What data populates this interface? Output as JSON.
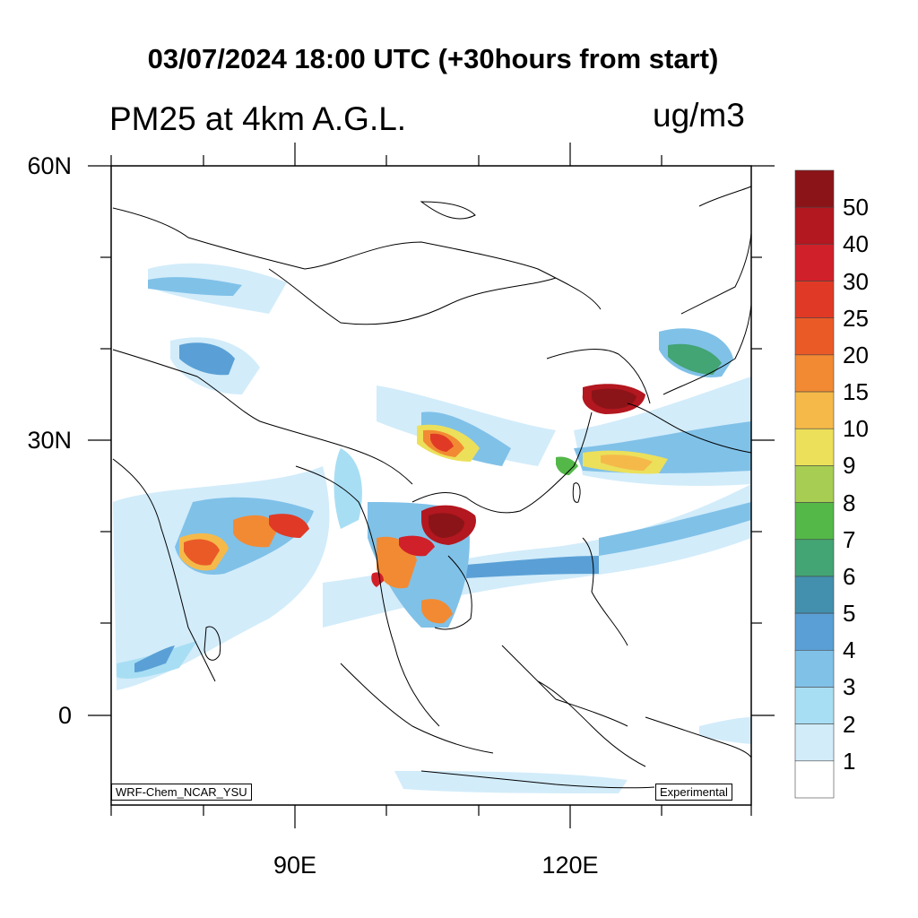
{
  "title": "03/07/2024 18:00 UTC (+30hours from start)",
  "subtitle": "PM25 at 4km A.G.L.",
  "units": "ug/m3",
  "latitude_labels": [
    "60N",
    "30N",
    "0"
  ],
  "longitude_labels": [
    "90E",
    "120E"
  ],
  "model_tag": "WRF-Chem_NCAR_YSU",
  "status_tag": "Experimental",
  "colorbar": {
    "labels": [
      "50",
      "40",
      "30",
      "25",
      "20",
      "15",
      "10",
      "9",
      "8",
      "7",
      "6",
      "5",
      "4",
      "3",
      "2",
      "1"
    ],
    "colors": [
      "#8b1418",
      "#b3171f",
      "#d0202a",
      "#e03a26",
      "#ea5a27",
      "#f28a33",
      "#f5b94a",
      "#ece05a",
      "#a7cd52",
      "#54b849",
      "#43a474",
      "#4290ad",
      "#5aa0d6",
      "#80c1e8",
      "#a8def4",
      "#d2ecfa",
      "#ffffff"
    ]
  },
  "colors": {
    "ocean": "#ffffff",
    "border": "#000000"
  }
}
